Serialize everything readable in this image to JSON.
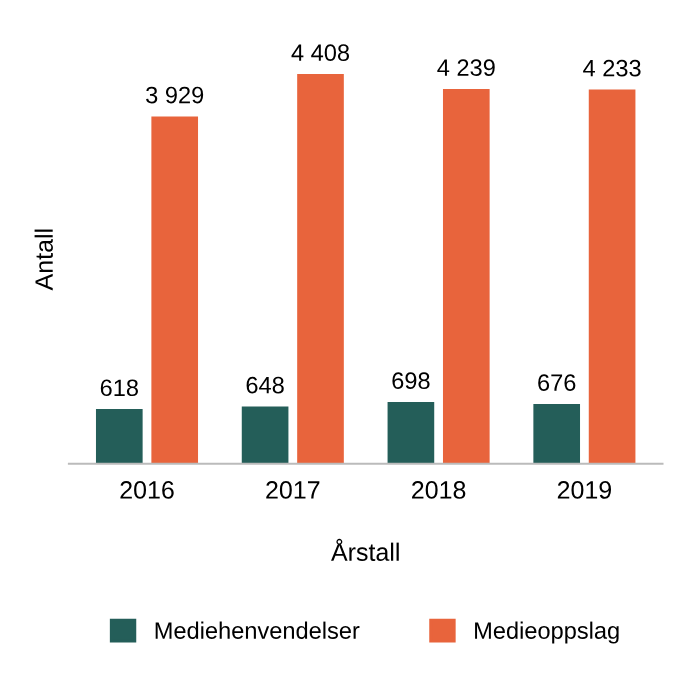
{
  "chart_data": {
    "type": "bar",
    "xlabel": "Årstall",
    "ylabel": "Antall",
    "categories": [
      "2016",
      "2017",
      "2018",
      "2019"
    ],
    "series": [
      {
        "name": "Mediehenvendelser",
        "color": "#245e59",
        "values": [
          618,
          648,
          698,
          676
        ],
        "value_labels": [
          "618",
          "648",
          "698",
          "676"
        ]
      },
      {
        "name": "Medieoppslag",
        "color": "#e8643c",
        "values": [
          3929,
          4408,
          4239,
          4233
        ],
        "value_labels": [
          "3 929",
          "4 408",
          "4 239",
          "4 233"
        ]
      }
    ],
    "legend": "bottom",
    "grid": false
  }
}
